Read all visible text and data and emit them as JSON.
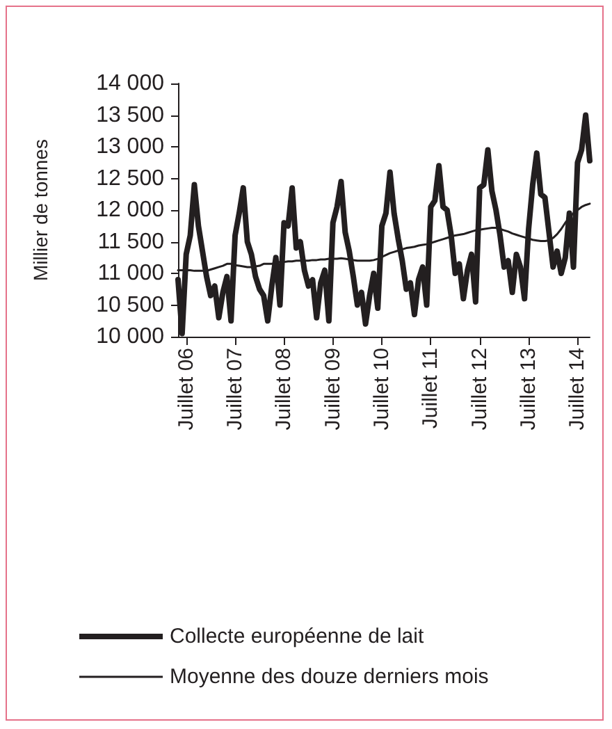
{
  "chart_data": {
    "type": "line",
    "ylabel": "Millier de tonnes",
    "categories": [
      null,
      null,
      "Juillet 06",
      null,
      null,
      null,
      null,
      null,
      null,
      null,
      null,
      null,
      null,
      null,
      "Juillet 07",
      null,
      null,
      null,
      null,
      null,
      null,
      null,
      null,
      null,
      null,
      null,
      "Juillet 08",
      null,
      null,
      null,
      null,
      null,
      null,
      null,
      null,
      null,
      null,
      null,
      "Juillet 09",
      null,
      null,
      null,
      null,
      null,
      null,
      null,
      null,
      null,
      null,
      null,
      "Juillet 10",
      null,
      null,
      null,
      null,
      null,
      null,
      null,
      null,
      null,
      null,
      null,
      "Juillet 11",
      null,
      null,
      null,
      null,
      null,
      null,
      null,
      null,
      null,
      null,
      null,
      "Juillet 12",
      null,
      null,
      null,
      null,
      null,
      null,
      null,
      null,
      null,
      null,
      null,
      "Juillet 13",
      null,
      null,
      null,
      null,
      null,
      null,
      null,
      null,
      null,
      null,
      null,
      "Juillet 14",
      null,
      null,
      null
    ],
    "series": [
      {
        "name": "Collecte européenne de lait",
        "color": "#231f20",
        "values": [
          10900,
          10050,
          11300,
          11600,
          12400,
          11750,
          11350,
          10950,
          10650,
          10800,
          10300,
          10700,
          10950,
          10250,
          11600,
          11950,
          12350,
          11500,
          11300,
          10950,
          10750,
          10650,
          10250,
          10800,
          11250,
          10500,
          11800,
          11750,
          12350,
          11400,
          11500,
          11050,
          10800,
          10900,
          10300,
          10850,
          11050,
          10250,
          11800,
          12050,
          12450,
          11650,
          11350,
          10950,
          10500,
          10700,
          10200,
          10650,
          11000,
          10450,
          11750,
          11950,
          12600,
          11950,
          11550,
          11200,
          10750,
          10850,
          10350,
          10900,
          11100,
          10500,
          12050,
          12150,
          12700,
          12050,
          12000,
          11600,
          11000,
          11150,
          10600,
          11050,
          11300,
          10550,
          12350,
          12400,
          12950,
          12300,
          12000,
          11600,
          11100,
          11200,
          10700,
          11300,
          11100,
          10600,
          11700,
          12400,
          12900,
          12250,
          12200,
          11650,
          11100,
          11350,
          11000,
          11250,
          11950,
          11100,
          12750,
          12950,
          13500,
          12780
        ]
      },
      {
        "name": "Moyenne des douze derniers mois",
        "color": "#231f20",
        "values": [
          11050,
          11050,
          11050,
          11050,
          11040,
          11040,
          11040,
          11040,
          11060,
          11080,
          11100,
          11120,
          11150,
          11150,
          11130,
          11120,
          11110,
          11100,
          11100,
          11110,
          11120,
          11150,
          11150,
          11150,
          11170,
          11180,
          11180,
          11190,
          11190,
          11200,
          11200,
          11200,
          11200,
          11210,
          11210,
          11220,
          11220,
          11230,
          11230,
          11230,
          11240,
          11230,
          11220,
          11210,
          11200,
          11200,
          11200,
          11200,
          11210,
          11230,
          11260,
          11290,
          11320,
          11340,
          11360,
          11380,
          11400,
          11410,
          11420,
          11440,
          11450,
          11460,
          11480,
          11500,
          11520,
          11540,
          11560,
          11580,
          11600,
          11610,
          11620,
          11640,
          11660,
          11680,
          11690,
          11700,
          11710,
          11720,
          11720,
          11700,
          11680,
          11660,
          11630,
          11610,
          11590,
          11570,
          11550,
          11530,
          11520,
          11510,
          11510,
          11520,
          11560,
          11620,
          11700,
          11800,
          11880,
          11950,
          12000,
          12050,
          12080,
          12100
        ]
      }
    ],
    "ylim": [
      10000,
      14000
    ],
    "yticks": [
      {
        "value": 10000,
        "label": "10 000"
      },
      {
        "value": 10500,
        "label": "10 500"
      },
      {
        "value": 11000,
        "label": "11 000"
      },
      {
        "value": 11500,
        "label": "11 500"
      },
      {
        "value": 12000,
        "label": "12 000"
      },
      {
        "value": 12500,
        "label": "12 500"
      },
      {
        "value": 13000,
        "label": "13 000"
      },
      {
        "value": 13500,
        "label": "13 500"
      },
      {
        "value": 14000,
        "label": "14 000"
      }
    ],
    "grid": false,
    "legend": "bottom",
    "marker": "none",
    "line_style": "solid"
  }
}
